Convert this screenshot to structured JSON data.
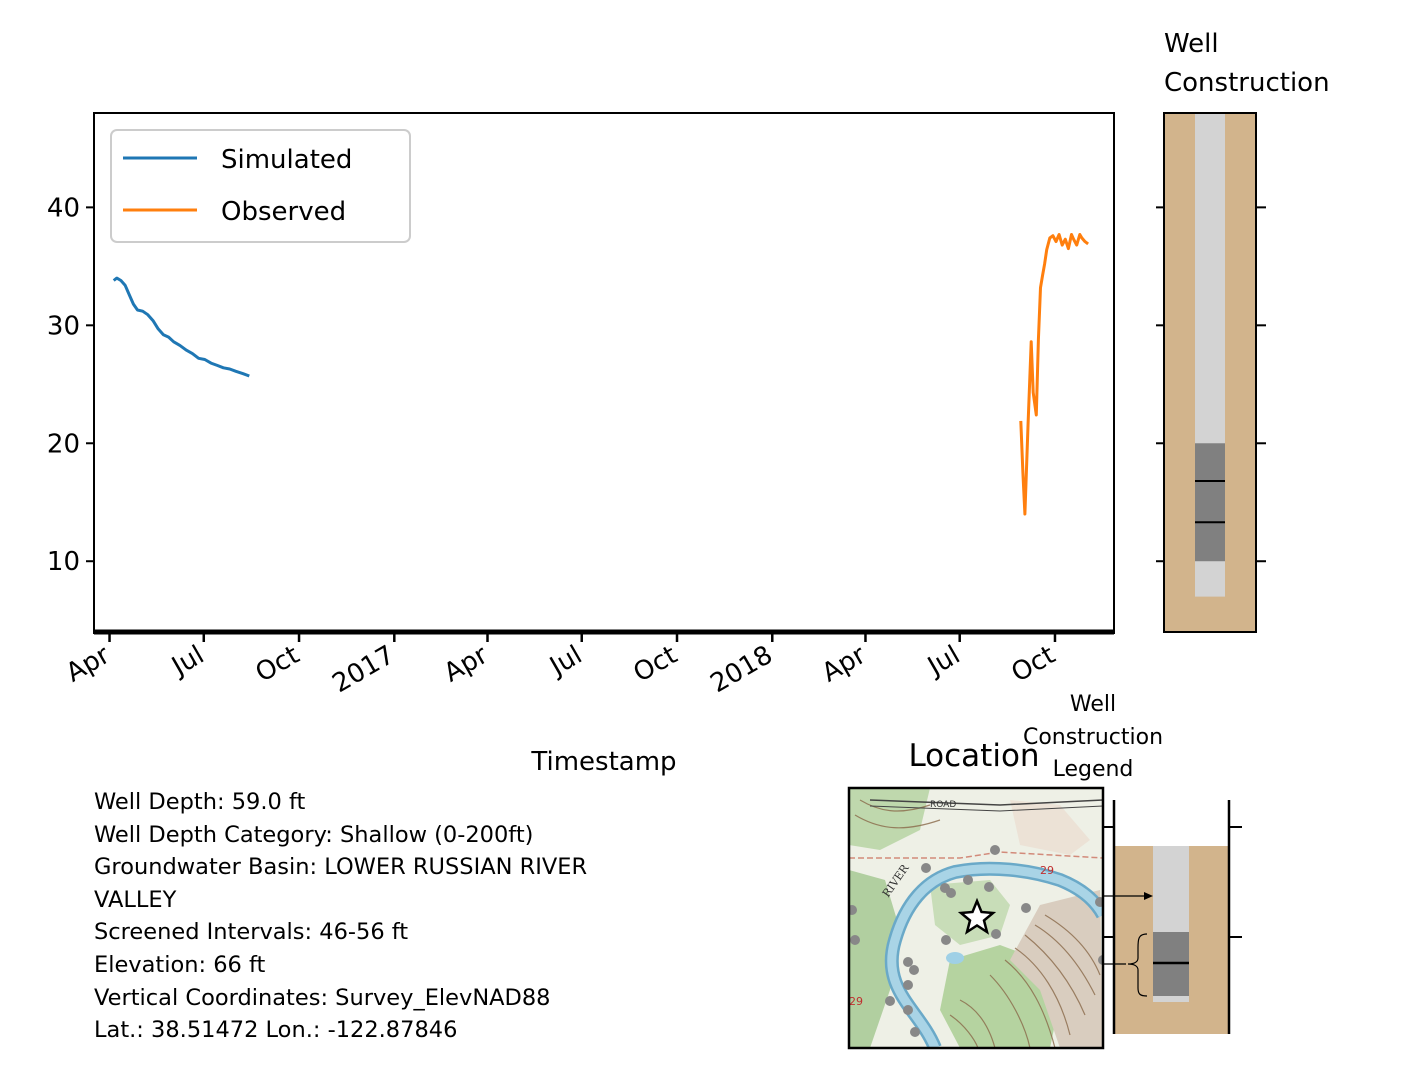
{
  "chart_data": {
    "type": "line",
    "title": "",
    "xlabel": "Timestamp",
    "ylabel": "",
    "xlim": [
      "2016-03-17",
      "2018-11-27"
    ],
    "ylim": [
      4,
      48
    ],
    "yticks": [
      10,
      20,
      30,
      40
    ],
    "xtick_labels": [
      "Apr",
      "Jul",
      "Oct",
      "2017",
      "Apr",
      "Jul",
      "Oct",
      "2018",
      "Apr",
      "Jul",
      "Oct"
    ],
    "xtick_dates": [
      "2016-04-01",
      "2016-07-01",
      "2016-10-01",
      "2017-01-01",
      "2017-04-01",
      "2017-07-01",
      "2017-10-01",
      "2018-01-01",
      "2018-04-01",
      "2018-07-01",
      "2018-10-01"
    ],
    "legend": {
      "placement": "upper-left"
    },
    "grid": false,
    "series": [
      {
        "name": "Simulated",
        "color": "#1f77b4",
        "x": [
          "2016-04-05",
          "2016-04-08",
          "2016-04-12",
          "2016-04-16",
          "2016-04-20",
          "2016-04-24",
          "2016-04-28",
          "2016-05-03",
          "2016-05-08",
          "2016-05-13",
          "2016-05-18",
          "2016-05-23",
          "2016-05-28",
          "2016-06-02",
          "2016-06-08",
          "2016-06-14",
          "2016-06-20",
          "2016-06-26",
          "2016-07-02",
          "2016-07-08",
          "2016-07-14",
          "2016-07-20",
          "2016-07-26",
          "2016-08-01",
          "2016-08-08",
          "2016-08-14"
        ],
        "y": [
          33.8,
          34.0,
          33.8,
          33.4,
          32.6,
          31.8,
          31.3,
          31.2,
          30.9,
          30.4,
          29.7,
          29.2,
          29.0,
          28.6,
          28.3,
          27.9,
          27.6,
          27.2,
          27.1,
          26.8,
          26.6,
          26.4,
          26.3,
          26.1,
          25.9,
          25.7
        ]
      },
      {
        "name": "Observed",
        "color": "#ff7f0e",
        "x": [
          "2018-08-29",
          "2018-08-31",
          "2018-09-02",
          "2018-09-05",
          "2018-09-08",
          "2018-09-10",
          "2018-09-13",
          "2018-09-15",
          "2018-09-17",
          "2018-09-19",
          "2018-09-21",
          "2018-09-23",
          "2018-09-26",
          "2018-09-29",
          "2018-10-02",
          "2018-10-05",
          "2018-10-08",
          "2018-10-11",
          "2018-10-14",
          "2018-10-17",
          "2018-10-19",
          "2018-10-22",
          "2018-10-25",
          "2018-10-27",
          "2018-10-30",
          "2018-11-02"
        ],
        "y": [
          21.9,
          17.5,
          14.0,
          21.7,
          28.6,
          24.3,
          22.4,
          28.8,
          33.2,
          34.2,
          35.2,
          36.4,
          37.4,
          37.6,
          37.1,
          37.7,
          36.8,
          37.3,
          36.5,
          37.7,
          37.3,
          36.8,
          37.7,
          37.4,
          37.1,
          36.9
        ]
      }
    ]
  },
  "well_construction": {
    "title_line1": "Well",
    "title_line2": "Construction",
    "casing_depth_ft": 7,
    "screen_top_ft": 20,
    "screen_bottom_ft": 10,
    "marks_ft": [
      16.8,
      13.3
    ],
    "colors": {
      "soil": "#d2b48c",
      "casing": "#d3d3d3",
      "screen": "#808080"
    }
  },
  "info": {
    "well_depth": "Well Depth: 59.0 ft",
    "depth_category": "Well Depth Category: Shallow (0-200ft)",
    "basin_line1": "Groundwater Basin: LOWER RUSSIAN RIVER",
    "basin_line2": "VALLEY",
    "screened": "Screened Intervals: 46-56 ft",
    "elevation": "Elevation: 66 ft",
    "vertical": "Vertical Coordinates: Survey_ElevNAD88",
    "latlon": "Lat.: 38.51472 Lon.: -122.87846"
  },
  "location": {
    "title": "Location",
    "map_labels": {
      "road": "ROAD",
      "river": "RIVER",
      "section": "29",
      "edge_number": "29"
    }
  },
  "legend_panel": {
    "title_line1": "Well",
    "title_line2": "Construction",
    "title_line3": "Legend"
  }
}
